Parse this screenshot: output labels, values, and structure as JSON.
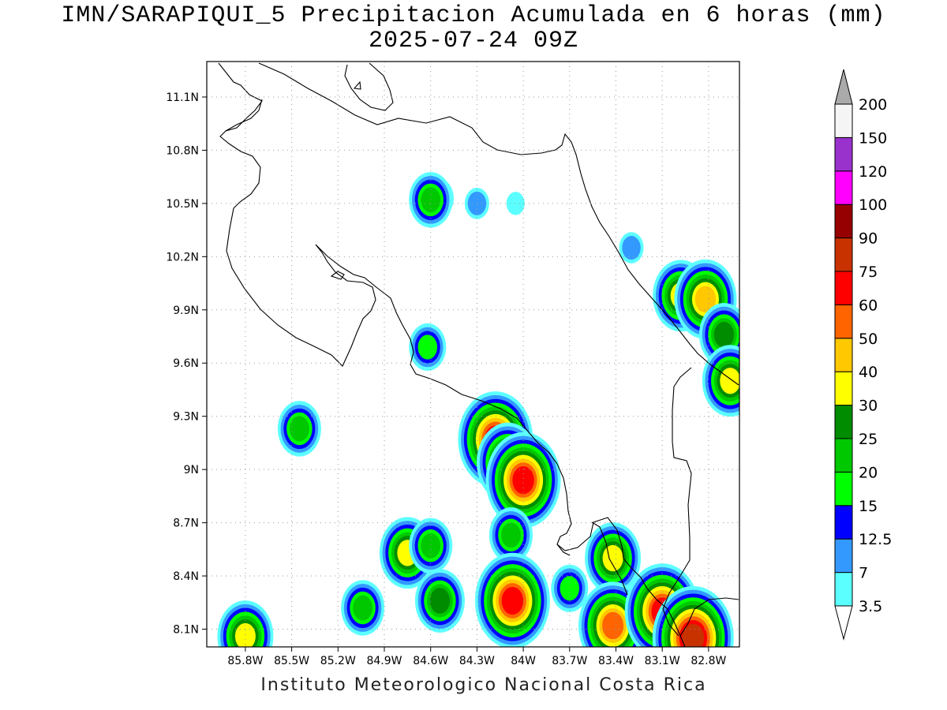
{
  "title_line1": "IMN/SARAPIQUI_5 Precipitacion Acumulada en 6 horas (mm)",
  "title_line2": "2025-07-24 09Z",
  "footer": "Instituto Meteorologico Nacional Costa Rica",
  "map": {
    "lon_range": [
      -86.05,
      -82.6
    ],
    "lat_range": [
      8.0,
      11.3
    ],
    "lat_ticks": [
      {
        "value": 11.1,
        "label": "11.1N"
      },
      {
        "value": 10.8,
        "label": "10.8N"
      },
      {
        "value": 10.5,
        "label": "10.5N"
      },
      {
        "value": 10.2,
        "label": "10.2N"
      },
      {
        "value": 9.9,
        "label": "9.9N"
      },
      {
        "value": 9.6,
        "label": "9.6N"
      },
      {
        "value": 9.3,
        "label": "9.3N"
      },
      {
        "value": 9.0,
        "label": "9N"
      },
      {
        "value": 8.7,
        "label": "8.7N"
      },
      {
        "value": 8.4,
        "label": "8.4N"
      },
      {
        "value": 8.1,
        "label": "8.1N"
      }
    ],
    "lon_ticks": [
      {
        "value": -85.8,
        "label": "85.8W"
      },
      {
        "value": -85.5,
        "label": "85.5W"
      },
      {
        "value": -85.2,
        "label": "85.2W"
      },
      {
        "value": -84.9,
        "label": "84.9W"
      },
      {
        "value": -84.6,
        "label": "84.6W"
      },
      {
        "value": -84.3,
        "label": "84.3W"
      },
      {
        "value": -84.0,
        "label": "84W"
      },
      {
        "value": -83.7,
        "label": "83.7W"
      },
      {
        "value": -83.4,
        "label": "83.4W"
      },
      {
        "value": -83.1,
        "label": "83.1W"
      },
      {
        "value": -82.8,
        "label": "82.8W"
      }
    ],
    "grid": "dotted",
    "precip_cells": [
      {
        "lon": -84.55,
        "lat": 10.53,
        "value": 12.5
      },
      {
        "lon": -84.6,
        "lat": 10.52,
        "value": 20
      },
      {
        "lon": -84.3,
        "lat": 10.5,
        "value": 7
      },
      {
        "lon": -84.05,
        "lat": 10.5,
        "value": 3.5
      },
      {
        "lon": -83.3,
        "lat": 10.25,
        "value": 7
      },
      {
        "lon": -82.98,
        "lat": 9.98,
        "value": 30
      },
      {
        "lon": -82.82,
        "lat": 9.96,
        "value": 40
      },
      {
        "lon": -82.7,
        "lat": 9.76,
        "value": 25
      },
      {
        "lon": -82.66,
        "lat": 9.5,
        "value": 30
      },
      {
        "lon": -84.62,
        "lat": 9.69,
        "value": 15
      },
      {
        "lon": -85.45,
        "lat": 9.23,
        "value": 20
      },
      {
        "lon": -84.18,
        "lat": 9.17,
        "value": 60
      },
      {
        "lon": -84.1,
        "lat": 9.04,
        "value": 40
      },
      {
        "lon": -84.0,
        "lat": 8.94,
        "value": 60
      },
      {
        "lon": -84.08,
        "lat": 8.63,
        "value": 20
      },
      {
        "lon": -84.07,
        "lat": 8.26,
        "value": 60
      },
      {
        "lon": -84.75,
        "lat": 8.53,
        "value": 30
      },
      {
        "lon": -84.6,
        "lat": 8.57,
        "value": 20
      },
      {
        "lon": -84.54,
        "lat": 8.26,
        "value": 25
      },
      {
        "lon": -85.04,
        "lat": 8.22,
        "value": 20
      },
      {
        "lon": -85.8,
        "lat": 8.06,
        "value": 30
      },
      {
        "lon": -83.42,
        "lat": 8.5,
        "value": 30
      },
      {
        "lon": -83.42,
        "lat": 8.12,
        "value": 50
      },
      {
        "lon": -83.1,
        "lat": 8.2,
        "value": 60
      },
      {
        "lon": -82.9,
        "lat": 8.05,
        "value": 75
      },
      {
        "lon": -83.7,
        "lat": 8.33,
        "value": 15
      }
    ]
  },
  "colorbar": {
    "levels": [
      "3.5",
      "7",
      "12.5",
      "15",
      "20",
      "25",
      "30",
      "40",
      "50",
      "60",
      "75",
      "90",
      "100",
      "120",
      "150",
      "200"
    ],
    "colors": [
      "#5cffff",
      "#3399ff",
      "#0000ff",
      "#00ff00",
      "#00c800",
      "#008c00",
      "#ffff00",
      "#ffc800",
      "#ff6400",
      "#ff0000",
      "#c83200",
      "#960000",
      "#ff00ff",
      "#9932cc",
      "#f5f5f5"
    ],
    "over_color": "#aaaaaa",
    "under_color": "#ffffff"
  }
}
